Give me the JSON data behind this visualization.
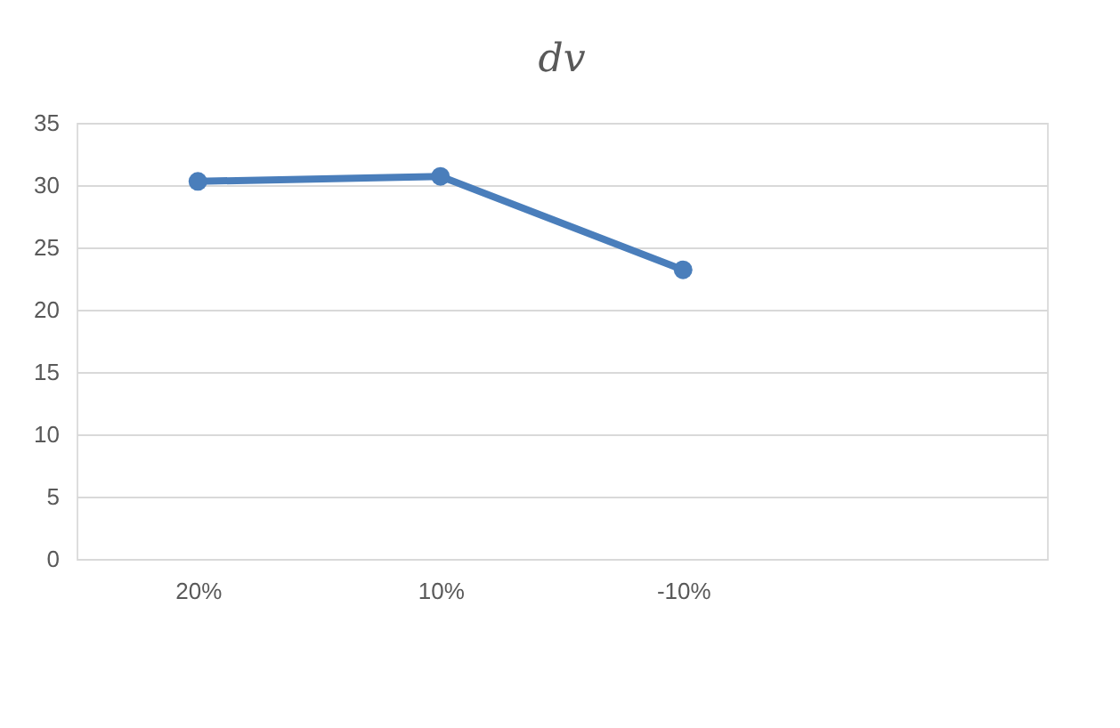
{
  "chart_data": {
    "type": "line",
    "title": "dv",
    "categories": [
      "20%",
      "10%",
      "-10%",
      null
    ],
    "series": [
      {
        "color": "#4a7ebb",
        "values": [
          30.3,
          30.7,
          23.2,
          null
        ]
      }
    ],
    "ylim": [
      0,
      35
    ],
    "yticks": [
      0,
      5,
      10,
      15,
      20,
      25,
      30,
      35
    ],
    "grid": "y",
    "marker": "circle",
    "line_style": "solid"
  }
}
